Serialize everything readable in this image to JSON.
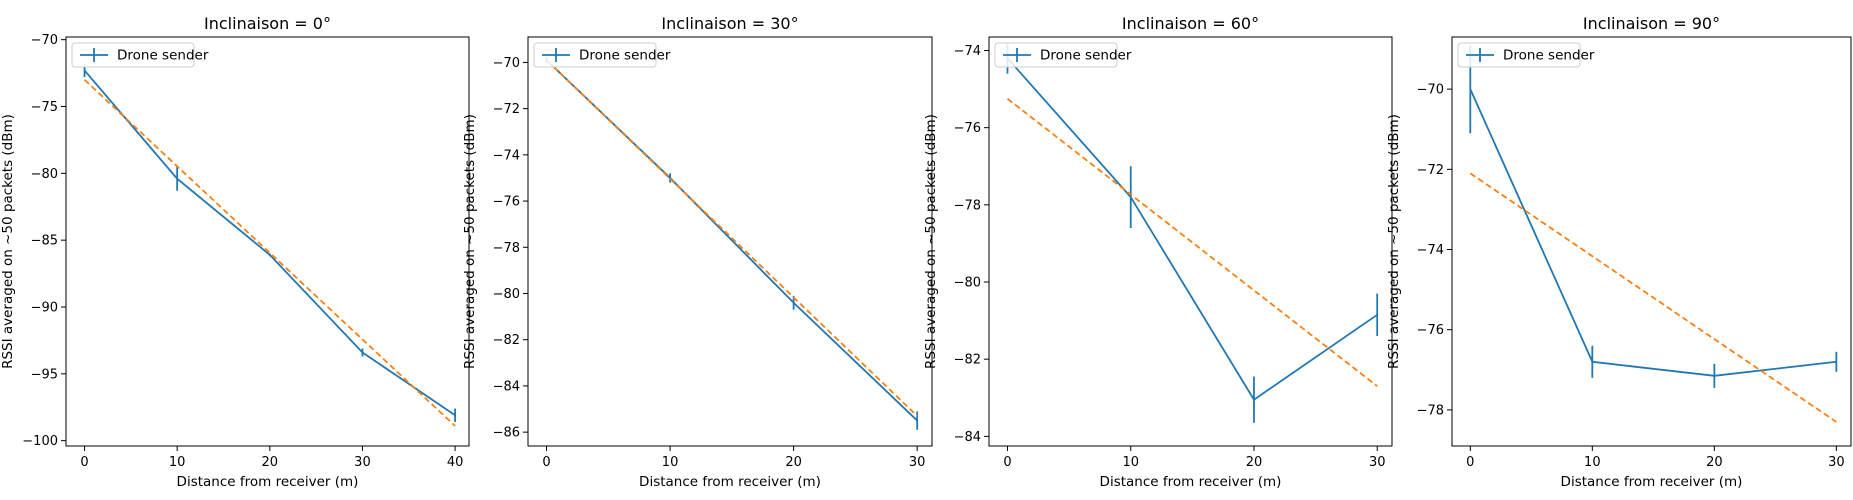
{
  "chart_data": [
    {
      "type": "line",
      "title": "Inclinaison = 0°",
      "xlabel": "Distance from receiver (m)",
      "ylabel": "RSSI averaged on ~50 packets (dBm)",
      "xlim": [
        -2,
        41.5
      ],
      "ylim": [
        -100.4,
        -69.8
      ],
      "xticks": [
        0,
        10,
        20,
        30,
        40
      ],
      "xtick_labels": [
        "0",
        "10",
        "20",
        "30",
        "40"
      ],
      "yticks": [
        -70,
        -75,
        -80,
        -85,
        -90,
        -95,
        -100
      ],
      "ytick_labels": [
        "−70",
        "−75",
        "−80",
        "−85",
        "−90",
        "−95",
        "−100"
      ],
      "legend": {
        "position": "top-left",
        "label": "Drone sender"
      },
      "series": [
        {
          "name": "Drone sender",
          "style": "solid-errorbar",
          "color": "#1f77b4",
          "x": [
            0,
            10,
            20,
            30,
            40
          ],
          "y": [
            -72.3,
            -80.4,
            -86.1,
            -93.4,
            -98.1
          ],
          "yerr": [
            0.5,
            0.9,
            0.1,
            0.3,
            0.5
          ]
        },
        {
          "style": "dashed-fit",
          "color": "#ff7f0e",
          "x": [
            0,
            40
          ],
          "y": [
            -73.0,
            -98.9
          ]
        }
      ]
    },
    {
      "type": "line",
      "title": "Inclinaison = 30°",
      "xlabel": "Distance from receiver (m)",
      "ylabel": "RSSI averaged on ~50 packets (dBm)",
      "xlim": [
        -1.5,
        31.2
      ],
      "ylim": [
        -86.6,
        -68.9
      ],
      "xticks": [
        0,
        10,
        20,
        30
      ],
      "xtick_labels": [
        "0",
        "10",
        "20",
        "30"
      ],
      "yticks": [
        -70,
        -72,
        -74,
        -76,
        -78,
        -80,
        -82,
        -84,
        -86
      ],
      "ytick_labels": [
        "−70",
        "−72",
        "−74",
        "−76",
        "−78",
        "−80",
        "−82",
        "−84",
        "−86"
      ],
      "legend": {
        "position": "top-left",
        "label": "Drone sender"
      },
      "series": [
        {
          "name": "Drone sender",
          "style": "solid-errorbar",
          "color": "#1f77b4",
          "x": [
            0,
            10,
            20,
            30
          ],
          "y": [
            -69.9,
            -75.0,
            -80.4,
            -85.5
          ],
          "yerr": [
            0.15,
            0.2,
            0.3,
            0.4
          ]
        },
        {
          "style": "dashed-fit",
          "color": "#ff7f0e",
          "x": [
            0,
            30
          ],
          "y": [
            -69.9,
            -85.3
          ]
        }
      ]
    },
    {
      "type": "line",
      "title": "Inclinaison = 60°",
      "xlabel": "Distance from receiver (m)",
      "ylabel": "RSSI averaged on ~50 packets (dBm)",
      "xlim": [
        -1.5,
        31.2
      ],
      "ylim": [
        -84.25,
        -73.65
      ],
      "xticks": [
        0,
        10,
        20,
        30
      ],
      "xtick_labels": [
        "0",
        "10",
        "20",
        "30"
      ],
      "yticks": [
        -74,
        -76,
        -78,
        -80,
        -82,
        -84
      ],
      "ytick_labels": [
        "−74",
        "−76",
        "−78",
        "−80",
        "−82",
        "−84"
      ],
      "legend": {
        "position": "top-left",
        "label": "Drone sender"
      },
      "series": [
        {
          "name": "Drone sender",
          "style": "solid-errorbar",
          "color": "#1f77b4",
          "x": [
            0,
            10,
            20,
            30
          ],
          "y": [
            -74.2,
            -77.8,
            -83.05,
            -80.85
          ],
          "yerr": [
            0.4,
            0.8,
            0.6,
            0.55
          ]
        },
        {
          "style": "dashed-fit",
          "color": "#ff7f0e",
          "x": [
            0,
            30
          ],
          "y": [
            -75.25,
            -82.7
          ]
        }
      ]
    },
    {
      "type": "line",
      "title": "Inclinaison = 90°",
      "xlabel": "Distance from receiver (m)",
      "ylabel": "RSSI averaged on ~50 packets (dBm)",
      "xlim": [
        -1.5,
        31.2
      ],
      "ylim": [
        -78.9,
        -68.7
      ],
      "xticks": [
        0,
        10,
        20,
        30
      ],
      "xtick_labels": [
        "0",
        "10",
        "20",
        "30"
      ],
      "yticks": [
        -70,
        -72,
        -74,
        -76,
        -78
      ],
      "ytick_labels": [
        "−70",
        "−72",
        "−74",
        "−76",
        "−78"
      ],
      "legend": {
        "position": "top-left",
        "label": "Drone sender"
      },
      "series": [
        {
          "name": "Drone sender",
          "style": "solid-errorbar",
          "color": "#1f77b4",
          "x": [
            0,
            10,
            20,
            30
          ],
          "y": [
            -70.0,
            -76.8,
            -77.15,
            -76.8
          ],
          "yerr": [
            1.1,
            0.4,
            0.3,
            0.25
          ]
        },
        {
          "style": "dashed-fit",
          "color": "#ff7f0e",
          "x": [
            0,
            30
          ],
          "y": [
            -72.1,
            -78.3
          ]
        }
      ]
    }
  ]
}
